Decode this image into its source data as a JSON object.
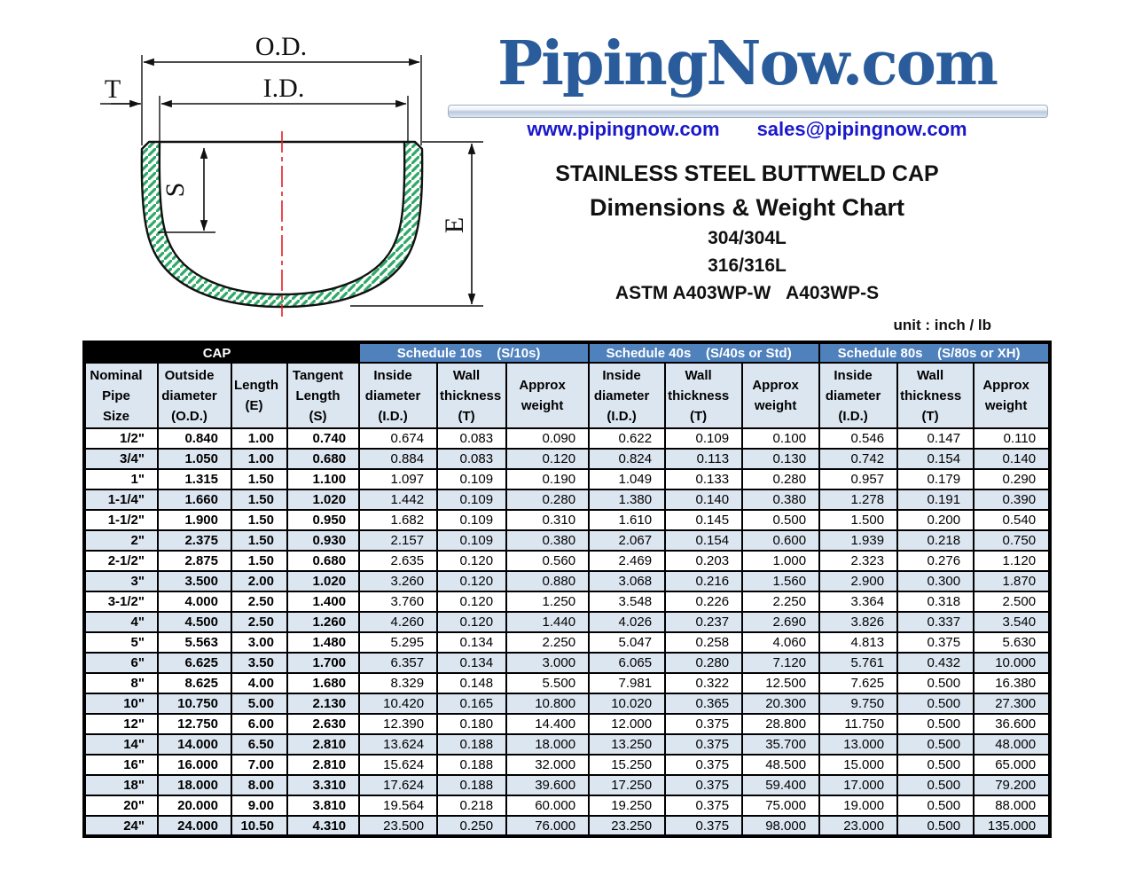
{
  "brand": {
    "logo_text": "PipingNow.com",
    "logo_color": "#2a5c9c",
    "website": "www.pipingnow.com",
    "email": "sales@pipingnow.com",
    "link_color": "#1a18cc"
  },
  "title_block": {
    "heading": "STAINLESS STEEL BUTTWELD CAP",
    "subheading": "Dimensions & Weight Chart",
    "grade1": "304/304L",
    "grade2": "316/316L",
    "spec": "ASTM A403WP-W   A403WP-S",
    "unit_note": "unit : inch / lb"
  },
  "diagram": {
    "labels": {
      "outside_diameter": "O.D.",
      "inside_diameter": "I.D.",
      "wall_thickness": "T",
      "tangent_length": "S",
      "length": "E"
    },
    "hatch_color": "#2fa968",
    "centerline_color": "#e81c24"
  },
  "table": {
    "group_headers": [
      {
        "label": "CAP"
      },
      {
        "label": "Schedule 10s    (S/10s)"
      },
      {
        "label": "Schedule 40s    (S/40s or Std)"
      },
      {
        "label": "Schedule 80s    (S/80s or XH)"
      }
    ],
    "column_headers": [
      "Nominal\nPipe\nSize",
      "Outside\ndiameter\n(O.D.)",
      "Length\n(E)",
      "Tangent\nLength\n(S)",
      "Inside\ndiameter\n(I.D.)",
      "Wall\nthickness\n(T)",
      "Approx\nweight",
      "Inside\ndiameter\n(I.D.)",
      "Wall\nthickness\n(T)",
      "Approx\nweight",
      "Inside\ndiameter\n(I.D.)",
      "Wall\nthickness\n(T)",
      "Approx\nweight"
    ],
    "rows": [
      [
        "1/2\"",
        "0.840",
        "1.00",
        "0.740",
        "0.674",
        "0.083",
        "0.090",
        "0.622",
        "0.109",
        "0.100",
        "0.546",
        "0.147",
        "0.110"
      ],
      [
        "3/4\"",
        "1.050",
        "1.00",
        "0.680",
        "0.884",
        "0.083",
        "0.120",
        "0.824",
        "0.113",
        "0.130",
        "0.742",
        "0.154",
        "0.140"
      ],
      [
        "1\"",
        "1.315",
        "1.50",
        "1.100",
        "1.097",
        "0.109",
        "0.190",
        "1.049",
        "0.133",
        "0.280",
        "0.957",
        "0.179",
        "0.290"
      ],
      [
        "1-1/4\"",
        "1.660",
        "1.50",
        "1.020",
        "1.442",
        "0.109",
        "0.280",
        "1.380",
        "0.140",
        "0.380",
        "1.278",
        "0.191",
        "0.390"
      ],
      [
        "1-1/2\"",
        "1.900",
        "1.50",
        "0.950",
        "1.682",
        "0.109",
        "0.310",
        "1.610",
        "0.145",
        "0.500",
        "1.500",
        "0.200",
        "0.540"
      ],
      [
        "2\"",
        "2.375",
        "1.50",
        "0.930",
        "2.157",
        "0.109",
        "0.380",
        "2.067",
        "0.154",
        "0.600",
        "1.939",
        "0.218",
        "0.750"
      ],
      [
        "2-1/2\"",
        "2.875",
        "1.50",
        "0.680",
        "2.635",
        "0.120",
        "0.560",
        "2.469",
        "0.203",
        "1.000",
        "2.323",
        "0.276",
        "1.120"
      ],
      [
        "3\"",
        "3.500",
        "2.00",
        "1.020",
        "3.260",
        "0.120",
        "0.880",
        "3.068",
        "0.216",
        "1.560",
        "2.900",
        "0.300",
        "1.870"
      ],
      [
        "3-1/2\"",
        "4.000",
        "2.50",
        "1.400",
        "3.760",
        "0.120",
        "1.250",
        "3.548",
        "0.226",
        "2.250",
        "3.364",
        "0.318",
        "2.500"
      ],
      [
        "4\"",
        "4.500",
        "2.50",
        "1.260",
        "4.260",
        "0.120",
        "1.440",
        "4.026",
        "0.237",
        "2.690",
        "3.826",
        "0.337",
        "3.540"
      ],
      [
        "5\"",
        "5.563",
        "3.00",
        "1.480",
        "5.295",
        "0.134",
        "2.250",
        "5.047",
        "0.258",
        "4.060",
        "4.813",
        "0.375",
        "5.630"
      ],
      [
        "6\"",
        "6.625",
        "3.50",
        "1.700",
        "6.357",
        "0.134",
        "3.000",
        "6.065",
        "0.280",
        "7.120",
        "5.761",
        "0.432",
        "10.000"
      ],
      [
        "8\"",
        "8.625",
        "4.00",
        "1.680",
        "8.329",
        "0.148",
        "5.500",
        "7.981",
        "0.322",
        "12.500",
        "7.625",
        "0.500",
        "16.380"
      ],
      [
        "10\"",
        "10.750",
        "5.00",
        "2.130",
        "10.420",
        "0.165",
        "10.800",
        "10.020",
        "0.365",
        "20.300",
        "9.750",
        "0.500",
        "27.300"
      ],
      [
        "12\"",
        "12.750",
        "6.00",
        "2.630",
        "12.390",
        "0.180",
        "14.400",
        "12.000",
        "0.375",
        "28.800",
        "11.750",
        "0.500",
        "36.600"
      ],
      [
        "14\"",
        "14.000",
        "6.50",
        "2.810",
        "13.624",
        "0.188",
        "18.000",
        "13.250",
        "0.375",
        "35.700",
        "13.000",
        "0.500",
        "48.000"
      ],
      [
        "16\"",
        "16.000",
        "7.00",
        "2.810",
        "15.624",
        "0.188",
        "32.000",
        "15.250",
        "0.375",
        "48.500",
        "15.000",
        "0.500",
        "65.000"
      ],
      [
        "18\"",
        "18.000",
        "8.00",
        "3.310",
        "17.624",
        "0.188",
        "39.600",
        "17.250",
        "0.375",
        "59.400",
        "17.000",
        "0.500",
        "79.200"
      ],
      [
        "20\"",
        "20.000",
        "9.00",
        "3.810",
        "19.564",
        "0.218",
        "60.000",
        "19.250",
        "0.375",
        "75.000",
        "19.000",
        "0.500",
        "88.000"
      ],
      [
        "24\"",
        "24.000",
        "10.50",
        "4.310",
        "23.500",
        "0.250",
        "76.000",
        "23.250",
        "0.375",
        "98.000",
        "23.000",
        "0.500",
        "135.000"
      ]
    ],
    "colors": {
      "schedule_header_bg": "#4f81bd",
      "cap_header_bg": "#000000",
      "stripe_row_bg": "#dce6f1",
      "column_header_bg": "#dce6f1"
    }
  }
}
